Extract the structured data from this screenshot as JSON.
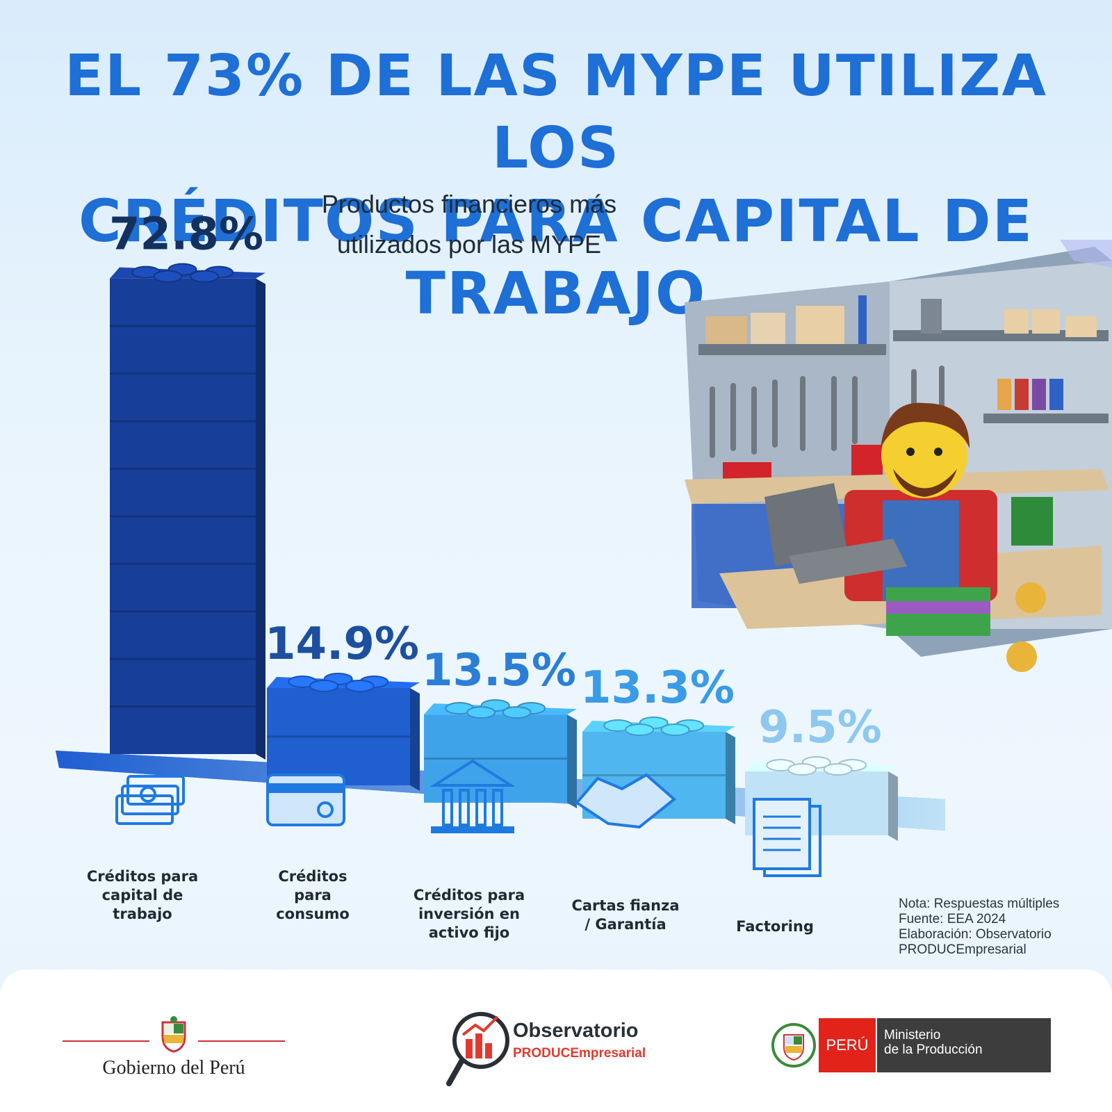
{
  "headline": {
    "line1": "EL 73% DE LAS MYPE UTILIZA LOS",
    "line2": "CRÉDITOS PARA CAPITAL DE TRABAJO"
  },
  "chart_data": {
    "type": "bar",
    "title": "Productos financieros más utilizados por las MYPE",
    "title_lines": [
      "Productos financieros más",
      "utilizados por las MYPE"
    ],
    "categories": [
      "Créditos para capital de trabajo",
      "Créditos para consumo",
      "Créditos para inversión en activo fijo",
      "Cartas fianza / Garantía",
      "Factoring"
    ],
    "category_lines": [
      [
        "Créditos para",
        "capital de",
        "trabajo"
      ],
      [
        "Créditos",
        "para",
        "consumo"
      ],
      [
        "Créditos para",
        "inversión en",
        "activo fijo"
      ],
      [
        "Cartas fianza",
        "/ Garantía"
      ],
      [
        "Factoring"
      ]
    ],
    "values": [
      72.8,
      14.9,
      13.5,
      13.3,
      9.5
    ],
    "value_labels": [
      "72.8%",
      "14.9%",
      "13.5%",
      "13.3%",
      "9.5%"
    ],
    "icons": [
      "money-stack-icon",
      "credit-card-icon",
      "bank-building-icon",
      "handshake-icon",
      "document-icon"
    ],
    "bar_colors": [
      "#173f9a",
      "#1f5fd0",
      "#3fa3ea",
      "#4fb6ef",
      "#bfe2f7"
    ],
    "label_colors": [
      "#13315f",
      "#1d4f9e",
      "#2a7fd4",
      "#3a9be6",
      "#8fc8ef"
    ],
    "ylim": [
      0,
      80
    ]
  },
  "notes": {
    "line1": "Nota: Respuestas múltiples",
    "line2": "Fuente: EEA 2024",
    "line3": "Elaboración: Observatorio",
    "line4": "PRODUCEmpresarial"
  },
  "footer": {
    "gobierno": "Gobierno del Perú",
    "observatorio_title": "Observatorio",
    "observatorio_sub": "PRODUCEmpresarial",
    "peru": "PERÚ",
    "ministerio_line1": "Ministerio",
    "ministerio_line2": "de la Producción"
  }
}
